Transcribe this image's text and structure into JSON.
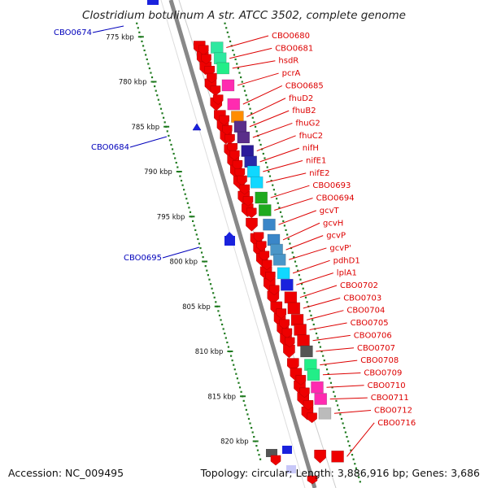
{
  "title": "Clostridium botulinum A str. ATCC 3502, complete genome",
  "accession": "Accession: NC_009495",
  "topology": "Topology: circular; Length: 3,886,916 bp; Genes: 3,686",
  "colors": {
    "backbone": "#888888",
    "tick": "#1f7a1f",
    "forward_label": "#dd0000",
    "reverse_label": "#0000bb",
    "arrow_red": "#ee0000"
  },
  "ticks": [
    {
      "kbp": 775,
      "label": "775 kbp"
    },
    {
      "kbp": 780,
      "label": "780 kbp"
    },
    {
      "kbp": 785,
      "label": "785 kbp"
    },
    {
      "kbp": 790,
      "label": "790 kbp"
    },
    {
      "kbp": 795,
      "label": "795 kbp"
    },
    {
      "kbp": 800,
      "label": "800 kbp"
    },
    {
      "kbp": 805,
      "label": "805 kbp"
    },
    {
      "kbp": 810,
      "label": "810 kbp"
    },
    {
      "kbp": 815,
      "label": "815 kbp"
    },
    {
      "kbp": 820,
      "label": "820 kbp"
    }
  ],
  "forward_genes": [
    {
      "name": "CBO0680",
      "kbp": 776.2,
      "color": "#2ee8a0"
    },
    {
      "name": "CBO0681",
      "kbp": 777.4,
      "color": "#2ee8a0"
    },
    {
      "name": "hsdR",
      "kbp": 778.5,
      "color": "#22ee88"
    },
    {
      "name": "pcrA",
      "kbp": 780.4,
      "color": "#ff2bb0"
    },
    {
      "name": "CBO0685",
      "kbp": 782.5,
      "color": "#ff2bb0"
    },
    {
      "name": "fhuD2",
      "kbp": 783.9,
      "color": "#ff8c00"
    },
    {
      "name": "fhuB2",
      "kbp": 785.0,
      "color": "#5a2e8a"
    },
    {
      "name": "fhuG2",
      "kbp": 786.2,
      "color": "#5a2e8a"
    },
    {
      "name": "fhuC2",
      "kbp": 787.7,
      "color": "#2a1a9a"
    },
    {
      "name": "nifH",
      "kbp": 788.9,
      "color": "#2a2aaa"
    },
    {
      "name": "nifE1",
      "kbp": 790.0,
      "color": "#10d8ff"
    },
    {
      "name": "nifE2",
      "kbp": 791.2,
      "color": "#10d8ff"
    },
    {
      "name": "CBO0693",
      "kbp": 792.9,
      "color": "#1faa1f"
    },
    {
      "name": "CBO0694",
      "kbp": 794.3,
      "color": "#1faa1f"
    },
    {
      "name": "gcvT",
      "kbp": 795.9,
      "color": "#3a86c8"
    },
    {
      "name": "gcvH",
      "kbp": 797.6,
      "color": "#3a86c8"
    },
    {
      "name": "gcvP",
      "kbp": 798.7,
      "color": "#4a96c8"
    },
    {
      "name": "gcvP'",
      "kbp": 799.8,
      "color": "#4a96c8"
    },
    {
      "name": "pdhD1",
      "kbp": 801.3,
      "color": "#10d8ff"
    },
    {
      "name": "lplA1",
      "kbp": 802.6,
      "color": "#1a22dd"
    },
    {
      "name": "CBO0702",
      "kbp": 804.0,
      "color": "#ee0000"
    },
    {
      "name": "CBO0703",
      "kbp": 805.2,
      "color": "#ee0000"
    },
    {
      "name": "CBO0704",
      "kbp": 806.5,
      "color": "#ee0000"
    },
    {
      "name": "CBO0705",
      "kbp": 807.6,
      "color": "#ee0000"
    },
    {
      "name": "CBO0706",
      "kbp": 808.8,
      "color": "#ee0000"
    },
    {
      "name": "CBO0707",
      "kbp": 810.0,
      "color": "#555555"
    },
    {
      "name": "CBO0708",
      "kbp": 811.5,
      "color": "#22ee88"
    },
    {
      "name": "CBO0709",
      "kbp": 812.6,
      "color": "#22ee88"
    },
    {
      "name": "CBO0710",
      "kbp": 814.0,
      "color": "#ff2bb0"
    },
    {
      "name": "CBO0711",
      "kbp": 815.3,
      "color": "#ff2bb0"
    },
    {
      "name": "CBO0712",
      "kbp": 816.9,
      "color": "#bbbbbb"
    },
    {
      "name": "CBO0716",
      "kbp": 821.7,
      "color": "#ee0000"
    }
  ],
  "reverse_genes": [
    {
      "name": "CBO0674",
      "kbp": 774.2
    },
    {
      "name": "CBO0684",
      "kbp": 785.0
    },
    {
      "name": "CBO0695",
      "kbp": 798.9
    }
  ]
}
